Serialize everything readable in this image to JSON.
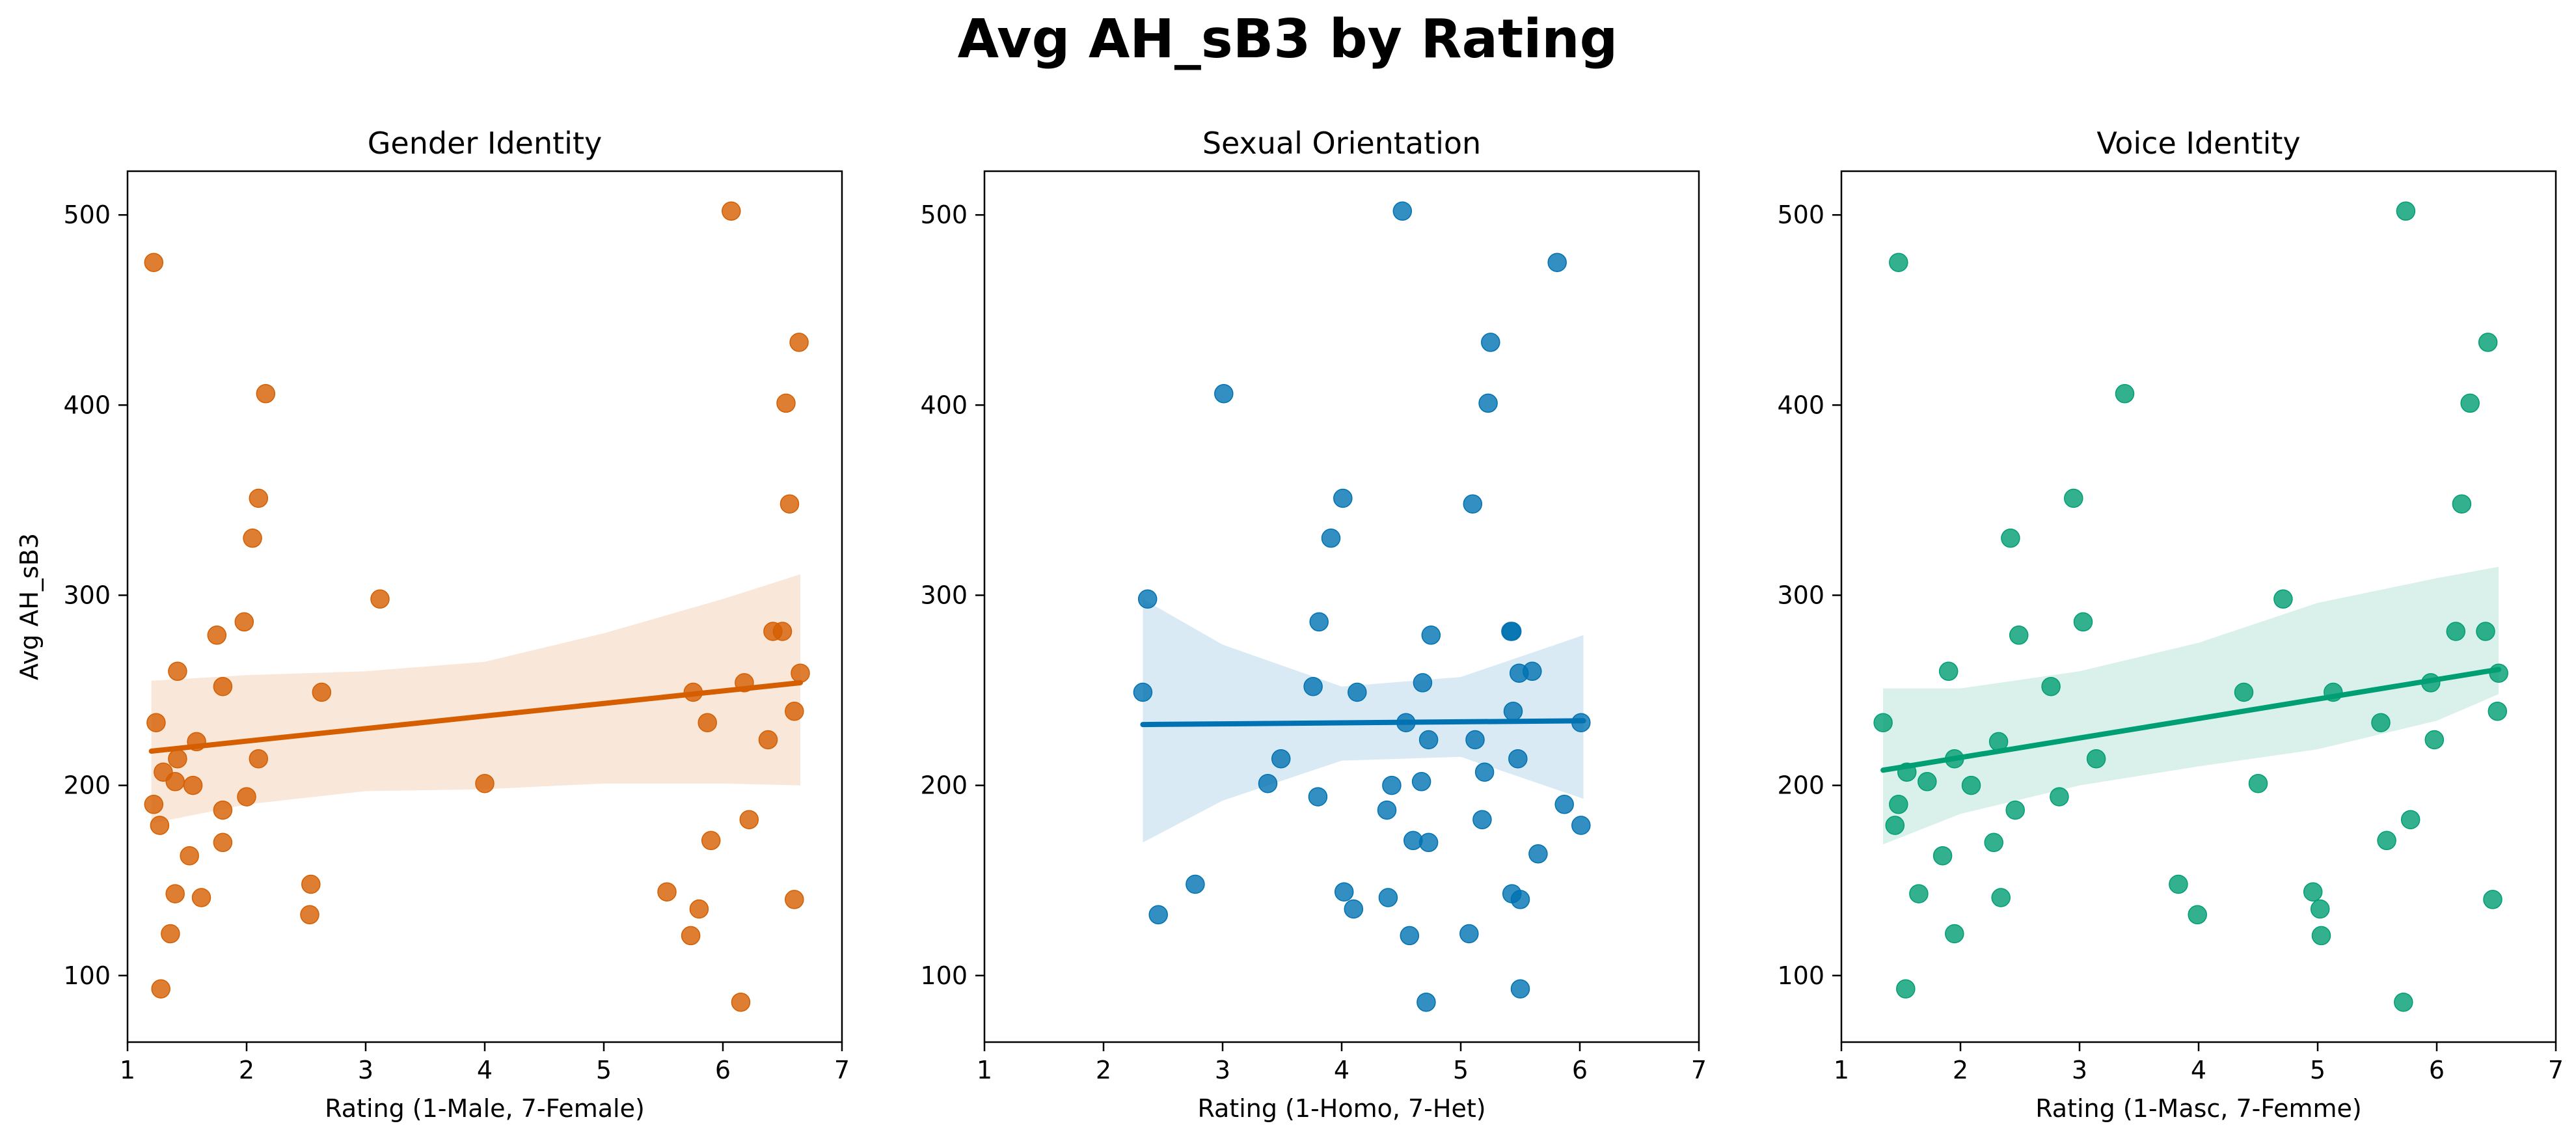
{
  "chart_data": {
    "title": "Avg AH_sB3 by Rating",
    "panels": [
      {
        "type": "scatter",
        "title": "Gender Identity",
        "xlabel": "Rating (1-Male, 7-Female)",
        "ylabel": "Avg AH_sB3",
        "xlim": [
          1,
          7
        ],
        "ylim": [
          65,
          523
        ],
        "xticks": [
          1,
          2,
          3,
          4,
          5,
          6,
          7
        ],
        "yticks": [
          100,
          200,
          300,
          400,
          500
        ],
        "color": "#d55e00",
        "regression": {
          "x": [
            1.2,
            6.65
          ],
          "y": [
            218,
            254
          ]
        },
        "ci_band": {
          "x": [
            1.2,
            2,
            3,
            4,
            5,
            6,
            6.65
          ],
          "lower": [
            180,
            190,
            197,
            198,
            201,
            201,
            200
          ],
          "upper": [
            255,
            258,
            260,
            265,
            280,
            298,
            311
          ]
        },
        "points": [
          [
            1.22,
            475
          ],
          [
            1.24,
            233
          ],
          [
            1.22,
            190
          ],
          [
            1.27,
            179
          ],
          [
            1.3,
            207
          ],
          [
            1.28,
            93
          ],
          [
            1.36,
            122
          ],
          [
            1.4,
            143
          ],
          [
            1.42,
            214
          ],
          [
            1.4,
            202
          ],
          [
            1.42,
            260
          ],
          [
            1.52,
            163
          ],
          [
            1.55,
            200
          ],
          [
            1.58,
            223
          ],
          [
            1.62,
            141
          ],
          [
            1.75,
            279
          ],
          [
            1.8,
            252
          ],
          [
            1.8,
            187
          ],
          [
            1.8,
            170
          ],
          [
            1.98,
            286
          ],
          [
            2.0,
            194
          ],
          [
            2.05,
            330
          ],
          [
            2.1,
            351
          ],
          [
            2.1,
            214
          ],
          [
            2.16,
            406
          ],
          [
            2.54,
            148
          ],
          [
            2.53,
            132
          ],
          [
            2.63,
            249
          ],
          [
            3.12,
            298
          ],
          [
            4.0,
            201
          ],
          [
            5.53,
            144
          ],
          [
            5.73,
            121
          ],
          [
            5.75,
            249
          ],
          [
            5.8,
            135
          ],
          [
            5.87,
            233
          ],
          [
            5.9,
            171
          ],
          [
            6.07,
            502
          ],
          [
            6.15,
            86
          ],
          [
            6.18,
            254
          ],
          [
            6.22,
            182
          ],
          [
            6.38,
            224
          ],
          [
            6.42,
            281
          ],
          [
            6.5,
            281
          ],
          [
            6.53,
            401
          ],
          [
            6.56,
            348
          ],
          [
            6.6,
            140
          ],
          [
            6.6,
            239
          ],
          [
            6.64,
            433
          ],
          [
            6.65,
            259
          ]
        ]
      },
      {
        "type": "scatter",
        "title": "Sexual Orientation",
        "xlabel": "Rating (1-Homo, 7-Het)",
        "ylabel": "",
        "xlim": [
          1,
          7
        ],
        "ylim": [
          65,
          523
        ],
        "xticks": [
          1,
          2,
          3,
          4,
          5,
          6,
          7
        ],
        "yticks": [
          100,
          200,
          300,
          400,
          500
        ],
        "color": "#0072b2",
        "regression": {
          "x": [
            2.33,
            6.03
          ],
          "y": [
            232,
            234
          ]
        },
        "ci_band": {
          "x": [
            2.33,
            3,
            4,
            5,
            6.03
          ],
          "lower": [
            170,
            192,
            213,
            215,
            193
          ],
          "upper": [
            298,
            274,
            252,
            257,
            279
          ]
        },
        "points": [
          [
            2.33,
            249
          ],
          [
            2.37,
            298
          ],
          [
            2.46,
            132
          ],
          [
            2.77,
            148
          ],
          [
            3.01,
            406
          ],
          [
            3.38,
            201
          ],
          [
            3.49,
            214
          ],
          [
            3.76,
            252
          ],
          [
            3.8,
            194
          ],
          [
            3.81,
            286
          ],
          [
            3.91,
            330
          ],
          [
            4.01,
            351
          ],
          [
            4.02,
            144
          ],
          [
            4.1,
            135
          ],
          [
            4.13,
            249
          ],
          [
            4.38,
            187
          ],
          [
            4.39,
            141
          ],
          [
            4.42,
            200
          ],
          [
            4.51,
            502
          ],
          [
            4.54,
            233
          ],
          [
            4.57,
            121
          ],
          [
            4.6,
            171
          ],
          [
            4.67,
            202
          ],
          [
            4.68,
            254
          ],
          [
            4.71,
            86
          ],
          [
            4.73,
            170
          ],
          [
            4.73,
            224
          ],
          [
            4.75,
            279
          ],
          [
            5.07,
            122
          ],
          [
            5.1,
            348
          ],
          [
            5.12,
            224
          ],
          [
            5.18,
            182
          ],
          [
            5.2,
            207
          ],
          [
            5.23,
            401
          ],
          [
            5.25,
            433
          ],
          [
            5.42,
            281
          ],
          [
            5.43,
            281
          ],
          [
            5.43,
            143
          ],
          [
            5.44,
            239
          ],
          [
            5.48,
            214
          ],
          [
            5.49,
            259
          ],
          [
            5.5,
            140
          ],
          [
            5.5,
            93
          ],
          [
            5.6,
            260
          ],
          [
            5.65,
            164
          ],
          [
            5.81,
            475
          ],
          [
            5.87,
            190
          ],
          [
            6.01,
            233
          ],
          [
            6.01,
            179
          ]
        ]
      },
      {
        "type": "scatter",
        "title": "Voice Identity",
        "xlabel": "Rating (1-Masc, 7-Femme)",
        "ylabel": "",
        "xlim": [
          1,
          7
        ],
        "ylim": [
          65,
          523
        ],
        "xticks": [
          1,
          2,
          3,
          4,
          5,
          6,
          7
        ],
        "yticks": [
          100,
          200,
          300,
          400,
          500
        ],
        "color": "#009e73",
        "regression": {
          "x": [
            1.35,
            6.52
          ],
          "y": [
            208,
            261
          ]
        },
        "ci_band": {
          "x": [
            1.35,
            2,
            3,
            4,
            5,
            6,
            6.52
          ],
          "lower": [
            169,
            185,
            200,
            210,
            219,
            234,
            248
          ],
          "upper": [
            251,
            251,
            260,
            275,
            296,
            309,
            315
          ]
        },
        "points": [
          [
            1.35,
            233
          ],
          [
            1.45,
            179
          ],
          [
            1.48,
            190
          ],
          [
            1.48,
            475
          ],
          [
            1.54,
            93
          ],
          [
            1.55,
            207
          ],
          [
            1.65,
            143
          ],
          [
            1.72,
            202
          ],
          [
            1.85,
            163
          ],
          [
            1.9,
            260
          ],
          [
            1.95,
            214
          ],
          [
            1.95,
            122
          ],
          [
            2.09,
            200
          ],
          [
            2.28,
            170
          ],
          [
            2.32,
            223
          ],
          [
            2.34,
            141
          ],
          [
            2.42,
            330
          ],
          [
            2.46,
            187
          ],
          [
            2.49,
            279
          ],
          [
            2.76,
            252
          ],
          [
            2.83,
            194
          ],
          [
            2.95,
            351
          ],
          [
            3.03,
            286
          ],
          [
            3.14,
            214
          ],
          [
            3.38,
            406
          ],
          [
            3.83,
            148
          ],
          [
            3.99,
            132
          ],
          [
            4.38,
            249
          ],
          [
            4.5,
            201
          ],
          [
            4.71,
            298
          ],
          [
            4.96,
            144
          ],
          [
            5.02,
            135
          ],
          [
            5.03,
            121
          ],
          [
            5.13,
            249
          ],
          [
            5.53,
            233
          ],
          [
            5.58,
            171
          ],
          [
            5.72,
            86
          ],
          [
            5.74,
            502
          ],
          [
            5.78,
            182
          ],
          [
            5.95,
            254
          ],
          [
            5.98,
            224
          ],
          [
            6.16,
            281
          ],
          [
            6.21,
            348
          ],
          [
            6.28,
            401
          ],
          [
            6.41,
            281
          ],
          [
            6.43,
            433
          ],
          [
            6.47,
            140
          ],
          [
            6.51,
            239
          ],
          [
            6.52,
            259
          ]
        ]
      }
    ]
  }
}
